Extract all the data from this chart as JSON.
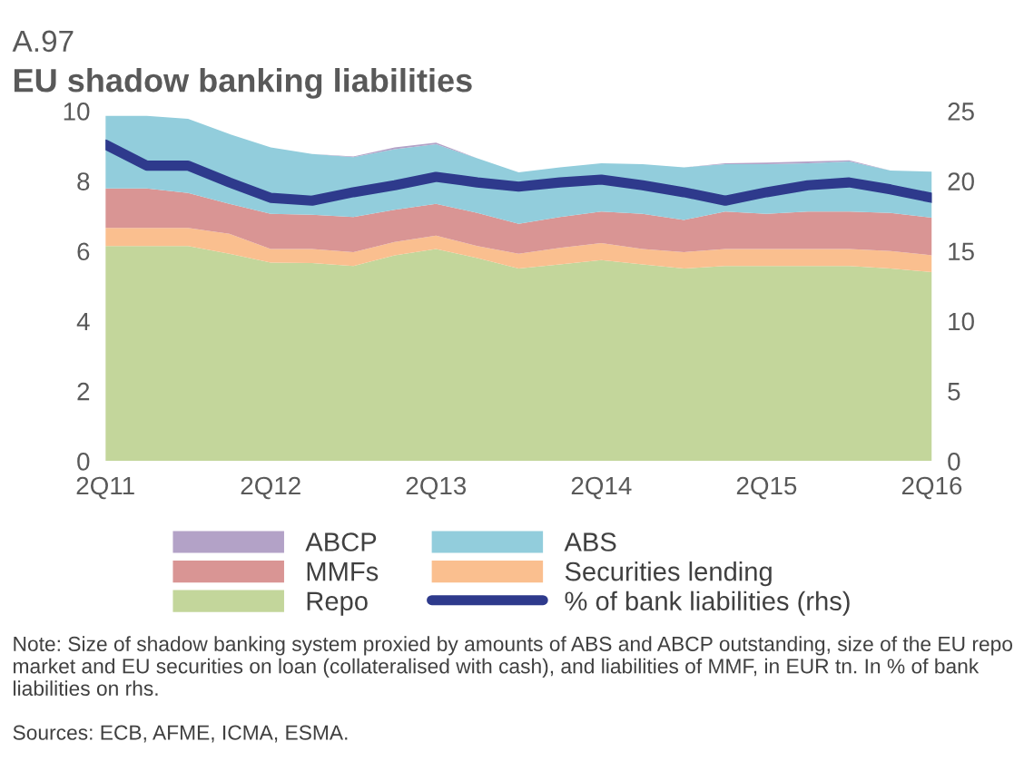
{
  "chart_data": {
    "type": "area",
    "stacked": true,
    "title": "EU shadow banking liabilities",
    "categories": [
      "2Q11",
      null,
      null,
      null,
      "2Q12",
      null,
      null,
      null,
      "2Q13",
      null,
      null,
      null,
      "2Q14",
      null,
      null,
      null,
      "2Q15",
      null,
      null,
      null,
      "2Q16"
    ],
    "series": [
      {
        "name": "Repo",
        "color": "#c3d69b",
        "values": [
          6.14,
          6.14,
          6.14,
          5.92,
          5.67,
          5.66,
          5.57,
          5.88,
          6.06,
          5.8,
          5.5,
          5.62,
          5.74,
          5.62,
          5.5,
          5.57,
          5.57,
          5.57,
          5.57,
          5.5,
          5.4
        ]
      },
      {
        "name": "Securities lending",
        "color": "#fabf8f",
        "values": [
          0.52,
          0.52,
          0.52,
          0.57,
          0.39,
          0.4,
          0.4,
          0.38,
          0.38,
          0.34,
          0.42,
          0.47,
          0.49,
          0.44,
          0.47,
          0.49,
          0.49,
          0.49,
          0.49,
          0.5,
          0.48
        ]
      },
      {
        "name": "MMFs",
        "color": "#d99594",
        "values": [
          1.13,
          1.13,
          1.0,
          0.86,
          1.0,
          0.98,
          1.0,
          0.92,
          0.91,
          0.95,
          0.86,
          0.88,
          0.9,
          1.0,
          0.92,
          1.07,
          1.0,
          1.07,
          1.07,
          1.09,
          1.07
        ]
      },
      {
        "name": "ABS",
        "color": "#92cddc",
        "values": [
          2.07,
          2.07,
          2.12,
          1.99,
          1.9,
          1.73,
          1.71,
          1.73,
          1.7,
          1.56,
          1.47,
          1.42,
          1.38,
          1.42,
          1.5,
          1.35,
          1.42,
          1.38,
          1.43,
          1.21,
          1.32
        ]
      },
      {
        "name": "ABCP",
        "color": "#b3a2c7",
        "values": [
          0,
          0,
          0,
          0,
          0,
          0,
          0.02,
          0.05,
          0.05,
          0,
          0,
          0,
          0,
          0,
          0,
          0.03,
          0.05,
          0.05,
          0.03,
          0,
          0
        ]
      },
      {
        "name": "% of bank liabilities (rhs)",
        "type": "line",
        "axis": "y2",
        "color": "#2e3a8c",
        "values": [
          22.6,
          21.1,
          21.1,
          19.9,
          18.8,
          18.6,
          19.2,
          19.7,
          20.3,
          19.9,
          19.6,
          19.9,
          20.1,
          19.7,
          19.2,
          18.6,
          19.2,
          19.7,
          19.9,
          19.4,
          18.8
        ]
      }
    ],
    "ylim": [
      0,
      10
    ],
    "yticks": [
      0,
      2,
      4,
      6,
      8,
      10
    ],
    "y2lim": [
      0,
      25
    ],
    "y2ticks": [
      0,
      5,
      10,
      15,
      20,
      25
    ],
    "legend": "bottom",
    "grid": false,
    "annotations": [
      "A.97",
      "Note: Size of shadow banking system proxied by amounts of ABS and ABCP outstanding, size of the EU repo market and EU securities on loan (collateralised with cash), and liabilities of MMF, in EUR tn. In % of bank liabilities on rhs.",
      "Sources: ECB, AFME, ICMA, ESMA."
    ]
  }
}
